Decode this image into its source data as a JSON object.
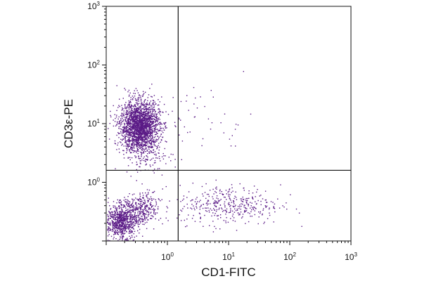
{
  "chart_data": {
    "type": "scatter",
    "title": "",
    "xlabel": "CD1-FITC",
    "ylabel": "CD3ε-PE",
    "x_scale": "log",
    "y_scale": "log",
    "xlim": [
      0.1,
      1000
    ],
    "ylim": [
      0.1,
      1000
    ],
    "x_ticks": [
      {
        "base": "10",
        "exp": "0",
        "value": 1
      },
      {
        "base": "10",
        "exp": "1",
        "value": 10
      },
      {
        "base": "10",
        "exp": "2",
        "value": 100
      },
      {
        "base": "10",
        "exp": "3",
        "value": 1000
      }
    ],
    "y_ticks": [
      {
        "base": "10",
        "exp": "0",
        "value": 1
      },
      {
        "base": "10",
        "exp": "1",
        "value": 10
      },
      {
        "base": "10",
        "exp": "2",
        "value": 100
      },
      {
        "base": "10",
        "exp": "3",
        "value": 1000
      }
    ],
    "quadrant_gates": {
      "x": 1.5,
      "y": 1.6
    },
    "grid": false,
    "legend": "none",
    "point_color": "#5a1a86",
    "population_clusters": [
      {
        "count": 2200,
        "x_center": 0.35,
        "y_center": 9.0,
        "x_spread_decades": 0.16,
        "y_spread_decades": 0.22
      },
      {
        "count": 750,
        "x_center": 0.18,
        "y_center": 0.22,
        "x_spread_decades": 0.12,
        "y_spread_decades": 0.14
      },
      {
        "count": 320,
        "x_center": 0.38,
        "y_center": 0.35,
        "x_spread_decades": 0.14,
        "y_spread_decades": 0.14
      },
      {
        "count": 380,
        "x_center": 10.0,
        "y_center": 0.42,
        "x_spread_decades": 0.42,
        "y_spread_decades": 0.17
      },
      {
        "count": 70,
        "x_center": 0.5,
        "y_center": 2.5,
        "x_spread_decades": 0.2,
        "y_spread_decades": 0.12
      },
      {
        "count": 45,
        "x_center": 4.0,
        "y_center": 12.0,
        "x_spread_decades": 0.4,
        "y_spread_decades": 0.3
      }
    ]
  }
}
